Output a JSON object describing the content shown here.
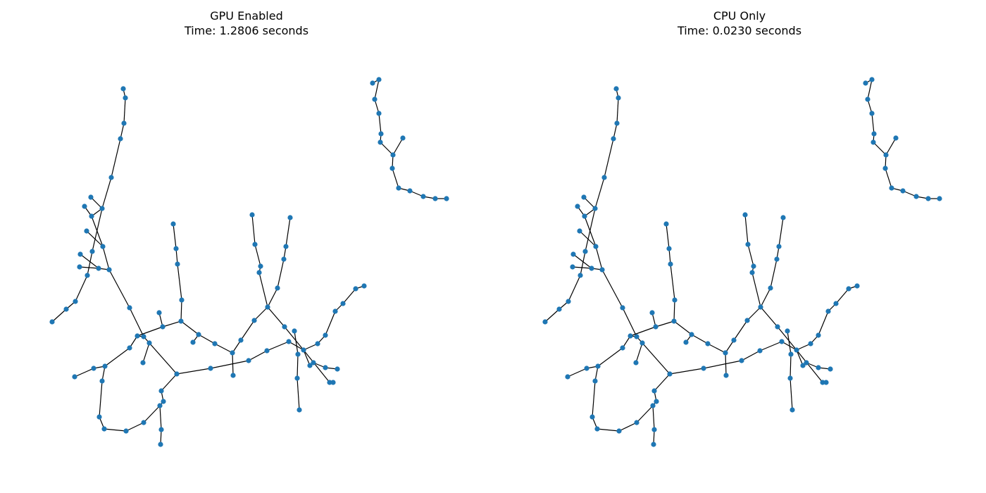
{
  "colors": {
    "node": "#1f77b4",
    "edge": "#000000",
    "background": "#ffffff"
  },
  "panels": [
    {
      "title_line1": "GPU Enabled",
      "title_line2": "Time: 1.2806 seconds"
    },
    {
      "title_line1": "CPU Only",
      "title_line2": "Time: 0.0230 seconds"
    }
  ]
}
